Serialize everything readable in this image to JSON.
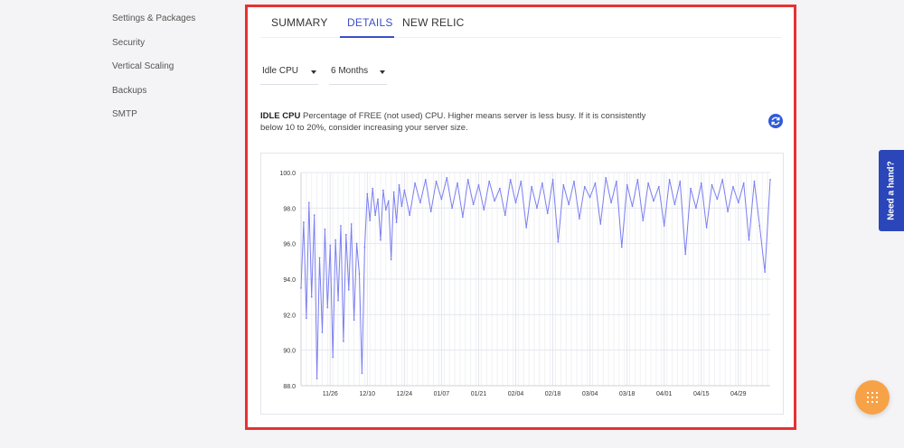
{
  "sidebar": {
    "items": [
      {
        "label": "Settings & Packages"
      },
      {
        "label": "Security"
      },
      {
        "label": "Vertical Scaling"
      },
      {
        "label": "Backups"
      },
      {
        "label": "SMTP"
      }
    ]
  },
  "tabs": [
    {
      "label": "SUMMARY",
      "active": false
    },
    {
      "label": "DETAILS",
      "active": true
    },
    {
      "label": "NEW RELIC",
      "active": false
    }
  ],
  "filters": {
    "metric": "Idle CPU",
    "range": "6 Months"
  },
  "description": {
    "title": "IDLE CPU",
    "text": "Percentage of FREE (not used) CPU. Higher means server is less busy. If it is consistently below 10 to 20%, consider increasing your server size."
  },
  "help_tab": {
    "label": "Need a hand?"
  },
  "colors": {
    "accent": "#3b4fc7",
    "line": "#7b7ff0",
    "highlight_border": "#e53232",
    "fab": "#f7a247",
    "help_tab": "#2b46b8"
  },
  "icons": {
    "refresh": "refresh-icon",
    "fab": "grid-menu-icon",
    "caret": "caret-down-icon"
  },
  "chart_data": {
    "type": "line",
    "title": "",
    "xlabel": "",
    "ylabel": "",
    "ylim": [
      88.0,
      100.0
    ],
    "y_ticks": [
      "100.0",
      "98.0",
      "96.0",
      "94.0",
      "92.0",
      "90.0",
      "88.0"
    ],
    "x_tick_labels": [
      "11/26",
      "12/10",
      "12/24",
      "01/07",
      "01/21",
      "02/04",
      "02/18",
      "03/04",
      "03/18",
      "04/01",
      "04/15",
      "04/29"
    ],
    "x_start": "11/15",
    "x_end": "05/11",
    "grid": true,
    "series": [
      {
        "name": "",
        "x": [
          "11/15",
          "11/16",
          "11/17",
          "11/18",
          "11/19",
          "11/20",
          "11/21",
          "11/22",
          "11/23",
          "11/24",
          "11/25",
          "11/26",
          "11/27",
          "11/28",
          "11/29",
          "11/30",
          "12/01",
          "12/02",
          "12/03",
          "12/04",
          "12/05",
          "12/06",
          "12/07",
          "12/08",
          "12/09",
          "12/10",
          "12/11",
          "12/12",
          "12/13",
          "12/14",
          "12/15",
          "12/16",
          "12/17",
          "12/18",
          "12/19",
          "12/20",
          "12/21",
          "12/22",
          "12/23",
          "12/24",
          "12/26",
          "12/28",
          "12/30",
          "01/01",
          "01/03",
          "01/05",
          "01/07",
          "01/09",
          "01/11",
          "01/13",
          "01/15",
          "01/17",
          "01/19",
          "01/21",
          "01/23",
          "01/25",
          "01/27",
          "01/29",
          "01/31",
          "02/02",
          "02/04",
          "02/06",
          "02/08",
          "02/10",
          "02/12",
          "02/14",
          "02/16",
          "02/18",
          "02/20",
          "02/22",
          "02/24",
          "02/26",
          "02/28",
          "03/02",
          "03/04",
          "03/06",
          "03/08",
          "03/10",
          "03/12",
          "03/14",
          "03/16",
          "03/18",
          "03/20",
          "03/22",
          "03/24",
          "03/26",
          "03/28",
          "03/30",
          "04/01",
          "04/03",
          "04/05",
          "04/07",
          "04/09",
          "04/11",
          "04/13",
          "04/15",
          "04/17",
          "04/19",
          "04/21",
          "04/23",
          "04/25",
          "04/27",
          "04/29",
          "05/01",
          "05/03",
          "05/05",
          "05/07",
          "05/09",
          "05/11"
        ],
        "values": [
          93.5,
          97.2,
          91.8,
          98.3,
          93.0,
          97.6,
          88.4,
          95.2,
          91.0,
          96.8,
          92.4,
          95.9,
          89.6,
          96.2,
          92.8,
          97.0,
          90.5,
          96.5,
          93.4,
          97.1,
          91.7,
          96.0,
          94.3,
          88.7,
          95.8,
          98.8,
          97.3,
          99.1,
          97.6,
          98.5,
          96.2,
          99.0,
          97.9,
          98.4,
          95.1,
          98.9,
          97.2,
          99.3,
          98.1,
          99.0,
          97.6,
          99.4,
          98.3,
          99.6,
          97.8,
          99.5,
          98.5,
          99.7,
          98.0,
          99.4,
          97.5,
          99.6,
          98.2,
          99.3,
          97.9,
          99.5,
          98.4,
          99.1,
          97.6,
          99.6,
          98.3,
          99.5,
          96.9,
          99.2,
          98.0,
          99.4,
          97.7,
          99.6,
          96.1,
          99.3,
          98.2,
          99.5,
          97.4,
          99.2,
          98.6,
          99.4,
          97.1,
          99.7,
          98.3,
          99.5,
          95.8,
          99.3,
          98.1,
          99.6,
          97.3,
          99.4,
          98.4,
          99.2,
          97.0,
          99.6,
          98.2,
          99.5,
          95.4,
          99.1,
          98.0,
          99.4,
          96.9,
          99.3,
          98.5,
          99.6,
          97.8,
          99.2,
          98.3,
          99.4,
          96.2,
          99.5,
          97.0,
          94.4,
          99.6
        ]
      }
    ]
  }
}
